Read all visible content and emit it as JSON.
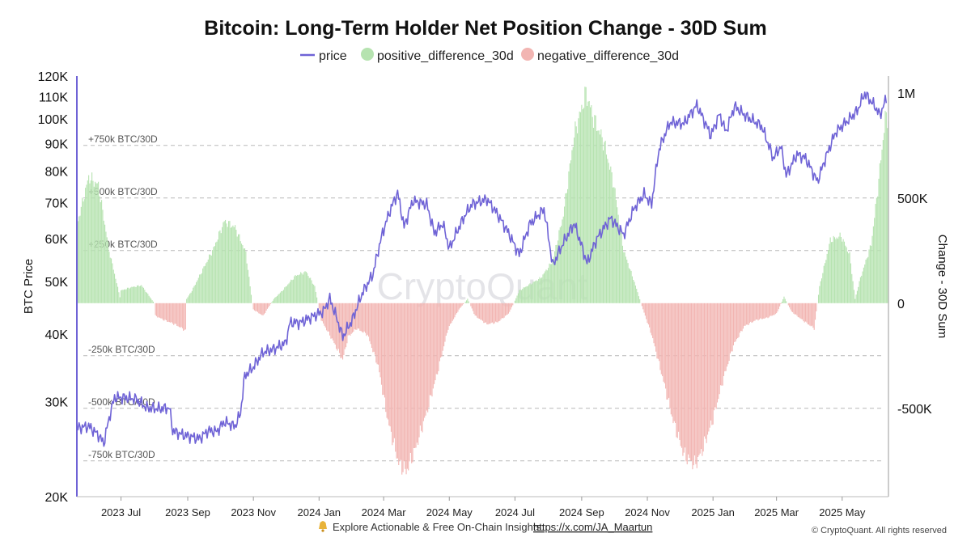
{
  "chart_data": {
    "type": "bar+line",
    "title": "Bitcoin: Long-Term Holder Net Position Change - 30D Sum",
    "legend": {
      "placement": "top-center",
      "items": [
        {
          "key": "price",
          "label": "price",
          "color": "#6f63d6",
          "marker": "line"
        },
        {
          "key": "pos",
          "label": "positive_difference_30d",
          "color": "#b6e3b0",
          "marker": "dot"
        },
        {
          "key": "neg",
          "label": "negative_difference_30d",
          "color": "#f2b5b2",
          "marker": "dot"
        }
      ]
    },
    "y_left": {
      "label": "BTC Price",
      "scale": "log",
      "range": [
        20000,
        120000
      ],
      "ticks": [
        20000,
        30000,
        40000,
        50000,
        60000,
        70000,
        80000,
        90000,
        100000,
        110000,
        120000
      ],
      "tick_labels": [
        "20K",
        "30K",
        "40K",
        "50K",
        "60K",
        "70K",
        "80K",
        "90K",
        "100K",
        "110K",
        "120K"
      ]
    },
    "y_right": {
      "label": "Change - 30D Sum",
      "scale": "linear",
      "range": [
        -920000,
        1080000
      ],
      "ticks": [
        -500000,
        0,
        500000,
        1000000
      ],
      "tick_labels": [
        "-500K",
        "0",
        "500K",
        "1M"
      ]
    },
    "x_axis": {
      "range": [
        "2023-05-21",
        "2025-06-13"
      ],
      "ticks": [
        "2023-07-01",
        "2023-09-01",
        "2023-11-01",
        "2024-01-01",
        "2024-03-01",
        "2024-05-01",
        "2024-07-01",
        "2024-09-01",
        "2024-11-01",
        "2025-01-01",
        "2025-03-01",
        "2025-05-01"
      ],
      "tick_labels": [
        "2023 Jul",
        "2023 Sep",
        "2023 Nov",
        "2024 Jan",
        "2024 Mar",
        "2024 May",
        "2024 Jul",
        "2024 Sep",
        "2024 Nov",
        "2025 Jan",
        "2025 Mar",
        "2025 May"
      ]
    },
    "reference_lines": [
      {
        "value": 750000,
        "label": "+750k BTC/30D"
      },
      {
        "value": 500000,
        "label": "+500k BTC/30D"
      },
      {
        "value": 250000,
        "label": "+250k BTC/30D"
      },
      {
        "value": -250000,
        "label": "-250k BTC/30D"
      },
      {
        "value": -500000,
        "label": "-500k BTC/30D"
      },
      {
        "value": -750000,
        "label": "-750k BTC/30D"
      }
    ],
    "grid": false,
    "net_position_change_30d": [
      [
        "2023-05-21",
        370000
      ],
      [
        "2023-06-01",
        600000
      ],
      [
        "2023-06-10",
        560000
      ],
      [
        "2023-06-20",
        250000
      ],
      [
        "2023-06-30",
        30000
      ],
      [
        "2023-07-01",
        60000
      ],
      [
        "2023-07-10",
        75000
      ],
      [
        "2023-07-20",
        85000
      ],
      [
        "2023-08-01",
        0
      ],
      [
        "2023-08-02",
        -60000
      ],
      [
        "2023-08-10",
        -80000
      ],
      [
        "2023-08-20",
        -100000
      ],
      [
        "2023-08-30",
        -130000
      ],
      [
        "2023-08-31",
        20000
      ],
      [
        "2023-09-05",
        60000
      ],
      [
        "2023-09-15",
        160000
      ],
      [
        "2023-09-25",
        260000
      ],
      [
        "2023-10-05",
        390000
      ],
      [
        "2023-10-15",
        360000
      ],
      [
        "2023-10-25",
        240000
      ],
      [
        "2023-10-31",
        0
      ],
      [
        "2023-11-01",
        -30000
      ],
      [
        "2023-11-10",
        -60000
      ],
      [
        "2023-11-20",
        20000
      ],
      [
        "2023-11-28",
        60000
      ],
      [
        "2023-12-10",
        130000
      ],
      [
        "2023-12-20",
        150000
      ],
      [
        "2023-12-28",
        80000
      ],
      [
        "2024-01-03",
        -80000
      ],
      [
        "2024-01-13",
        -170000
      ],
      [
        "2024-01-23",
        -270000
      ],
      [
        "2024-01-28",
        -160000
      ],
      [
        "2024-02-05",
        -120000
      ],
      [
        "2024-02-15",
        -150000
      ],
      [
        "2024-02-25",
        -300000
      ],
      [
        "2024-03-05",
        -560000
      ],
      [
        "2024-03-15",
        -760000
      ],
      [
        "2024-03-22",
        -800000
      ],
      [
        "2024-03-30",
        -700000
      ],
      [
        "2024-04-10",
        -520000
      ],
      [
        "2024-04-20",
        -330000
      ],
      [
        "2024-04-30",
        -120000
      ],
      [
        "2024-05-10",
        -30000
      ],
      [
        "2024-05-18",
        20000
      ],
      [
        "2024-05-25",
        -60000
      ],
      [
        "2024-06-05",
        -100000
      ],
      [
        "2024-06-15",
        -90000
      ],
      [
        "2024-06-25",
        -50000
      ],
      [
        "2024-06-30",
        0
      ],
      [
        "2024-07-05",
        60000
      ],
      [
        "2024-07-15",
        90000
      ],
      [
        "2024-07-25",
        120000
      ],
      [
        "2024-08-05",
        200000
      ],
      [
        "2024-08-15",
        420000
      ],
      [
        "2024-08-25",
        800000
      ],
      [
        "2024-09-05",
        1000000
      ],
      [
        "2024-09-12",
        880000
      ],
      [
        "2024-09-22",
        760000
      ],
      [
        "2024-10-01",
        560000
      ],
      [
        "2024-10-10",
        250000
      ],
      [
        "2024-10-20",
        100000
      ],
      [
        "2024-10-28",
        -30000
      ],
      [
        "2024-11-05",
        -150000
      ],
      [
        "2024-11-15",
        -350000
      ],
      [
        "2024-11-25",
        -560000
      ],
      [
        "2024-12-05",
        -720000
      ],
      [
        "2024-12-15",
        -770000
      ],
      [
        "2024-12-22",
        -700000
      ],
      [
        "2025-01-01",
        -550000
      ],
      [
        "2025-01-10",
        -370000
      ],
      [
        "2025-01-20",
        -200000
      ],
      [
        "2025-01-30",
        -110000
      ],
      [
        "2025-02-10",
        -80000
      ],
      [
        "2025-02-20",
        -70000
      ],
      [
        "2025-03-01",
        -50000
      ],
      [
        "2025-03-08",
        30000
      ],
      [
        "2025-03-15",
        -40000
      ],
      [
        "2025-03-25",
        -80000
      ],
      [
        "2025-04-05",
        -120000
      ],
      [
        "2025-04-10",
        80000
      ],
      [
        "2025-04-20",
        300000
      ],
      [
        "2025-04-30",
        320000
      ],
      [
        "2025-05-08",
        230000
      ],
      [
        "2025-05-13",
        20000
      ],
      [
        "2025-05-18",
        120000
      ],
      [
        "2025-05-28",
        280000
      ],
      [
        "2025-06-03",
        540000
      ],
      [
        "2025-06-10",
        880000
      ],
      [
        "2025-06-13",
        880000
      ]
    ],
    "price": [
      [
        "2023-05-21",
        26800
      ],
      [
        "2023-06-01",
        27000
      ],
      [
        "2023-06-10",
        26000
      ],
      [
        "2023-06-15",
        25100
      ],
      [
        "2023-06-21",
        28500
      ],
      [
        "2023-06-25",
        30500
      ],
      [
        "2023-07-05",
        30500
      ],
      [
        "2023-07-15",
        30300
      ],
      [
        "2023-07-25",
        29200
      ],
      [
        "2023-08-05",
        29100
      ],
      [
        "2023-08-15",
        29200
      ],
      [
        "2023-08-18",
        26500
      ],
      [
        "2023-08-28",
        26000
      ],
      [
        "2023-09-05",
        25800
      ],
      [
        "2023-09-12",
        25600
      ],
      [
        "2023-09-20",
        26500
      ],
      [
        "2023-09-28",
        26400
      ],
      [
        "2023-10-05",
        27500
      ],
      [
        "2023-10-15",
        27000
      ],
      [
        "2023-10-20",
        28500
      ],
      [
        "2023-10-24",
        33500
      ],
      [
        "2023-10-31",
        34500
      ],
      [
        "2023-11-10",
        37000
      ],
      [
        "2023-11-20",
        37500
      ],
      [
        "2023-12-01",
        38500
      ],
      [
        "2023-12-05",
        42000
      ],
      [
        "2023-12-15",
        42000
      ],
      [
        "2023-12-25",
        43000
      ],
      [
        "2024-01-05",
        44000
      ],
      [
        "2024-01-11",
        46500
      ],
      [
        "2024-01-23",
        39500
      ],
      [
        "2024-02-01",
        42500
      ],
      [
        "2024-02-10",
        47500
      ],
      [
        "2024-02-20",
        51500
      ],
      [
        "2024-02-29",
        61500
      ],
      [
        "2024-03-08",
        68500
      ],
      [
        "2024-03-14",
        73000
      ],
      [
        "2024-03-20",
        63000
      ],
      [
        "2024-03-28",
        70500
      ],
      [
        "2024-04-10",
        69500
      ],
      [
        "2024-04-17",
        61500
      ],
      [
        "2024-04-25",
        64000
      ],
      [
        "2024-05-01",
        57500
      ],
      [
        "2024-05-15",
        66000
      ],
      [
        "2024-05-22",
        69500
      ],
      [
        "2024-06-05",
        71000
      ],
      [
        "2024-06-15",
        66500
      ],
      [
        "2024-06-25",
        61500
      ],
      [
        "2024-07-05",
        56000
      ],
      [
        "2024-07-15",
        64000
      ],
      [
        "2024-07-28",
        68000
      ],
      [
        "2024-08-05",
        53500
      ],
      [
        "2024-08-15",
        59000
      ],
      [
        "2024-08-25",
        64000
      ],
      [
        "2024-09-06",
        54000
      ],
      [
        "2024-09-15",
        60000
      ],
      [
        "2024-09-28",
        65500
      ],
      [
        "2024-10-10",
        61000
      ],
      [
        "2024-10-20",
        68500
      ],
      [
        "2024-10-29",
        72500
      ],
      [
        "2024-11-05",
        69500
      ],
      [
        "2024-11-12",
        88000
      ],
      [
        "2024-11-22",
        98500
      ],
      [
        "2024-12-05",
        98000
      ],
      [
        "2024-12-17",
        106000
      ],
      [
        "2024-12-30",
        93000
      ],
      [
        "2025-01-07",
        102000
      ],
      [
        "2025-01-13",
        94500
      ],
      [
        "2025-01-21",
        105500
      ],
      [
        "2025-02-01",
        101000
      ],
      [
        "2025-02-15",
        97000
      ],
      [
        "2025-02-26",
        84500
      ],
      [
        "2025-03-05",
        89000
      ],
      [
        "2025-03-10",
        78500
      ],
      [
        "2025-03-20",
        86000
      ],
      [
        "2025-03-28",
        84500
      ],
      [
        "2025-04-08",
        76500
      ],
      [
        "2025-04-15",
        84000
      ],
      [
        "2025-04-25",
        94500
      ],
      [
        "2025-05-08",
        100000
      ],
      [
        "2025-05-15",
        103500
      ],
      [
        "2025-05-22",
        111500
      ],
      [
        "2025-06-01",
        105000
      ],
      [
        "2025-06-05",
        101500
      ],
      [
        "2025-06-11",
        109000
      ]
    ]
  },
  "watermark": "CryptoQuant",
  "footer": {
    "icon": "bell-icon",
    "text": "Explore Actionable & Free On-Chain Insights:",
    "link": "https://x.com/JA_Maartun",
    "copyright": "© CryptoQuant. All rights reserved"
  }
}
